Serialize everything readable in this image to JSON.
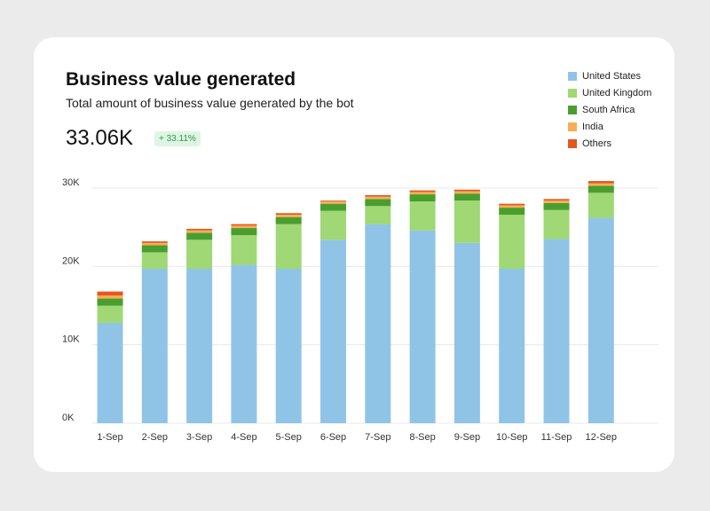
{
  "card": {
    "title": "Business value generated",
    "subtitle": "Total amount of business value generated by the bot",
    "metric": "33.06K",
    "badge": "+ 33.11%"
  },
  "colors": {
    "United States": "#90c4e6",
    "United Kingdom": "#9fd874",
    "South Africa": "#4a9e2e",
    "India": "#f8ae58",
    "Others": "#e4571f"
  },
  "chart_data": {
    "type": "bar",
    "stacked": true,
    "title": "Business value generated",
    "ylim": [
      0,
      30000
    ],
    "yticks": [
      0,
      10000,
      20000,
      30000
    ],
    "ytick_labels": [
      "0K",
      "10K",
      "20K",
      "30K"
    ],
    "categories": [
      "1-Sep",
      "2-Sep",
      "3-Sep",
      "4-Sep",
      "5-Sep",
      "6-Sep",
      "7-Sep",
      "8-Sep",
      "9-Sep",
      "10-Sep",
      "11-Sep",
      "12-Sep"
    ],
    "series": [
      {
        "name": "United States",
        "values": [
          12800,
          19700,
          19700,
          20200,
          19700,
          23400,
          25400,
          24600,
          23000,
          19700,
          23500,
          26200
        ]
      },
      {
        "name": "United Kingdom",
        "values": [
          2200,
          2100,
          3700,
          3800,
          5700,
          3700,
          2300,
          3700,
          5400,
          6900,
          3700,
          3200
        ]
      },
      {
        "name": "South Africa",
        "values": [
          900,
          900,
          900,
          900,
          900,
          900,
          900,
          900,
          900,
          900,
          900,
          900
        ]
      },
      {
        "name": "India",
        "values": [
          400,
          300,
          300,
          300,
          300,
          300,
          300,
          300,
          300,
          300,
          300,
          300
        ]
      },
      {
        "name": "Others",
        "values": [
          500,
          200,
          200,
          200,
          200,
          100,
          200,
          200,
          200,
          200,
          200,
          300
        ]
      }
    ]
  }
}
